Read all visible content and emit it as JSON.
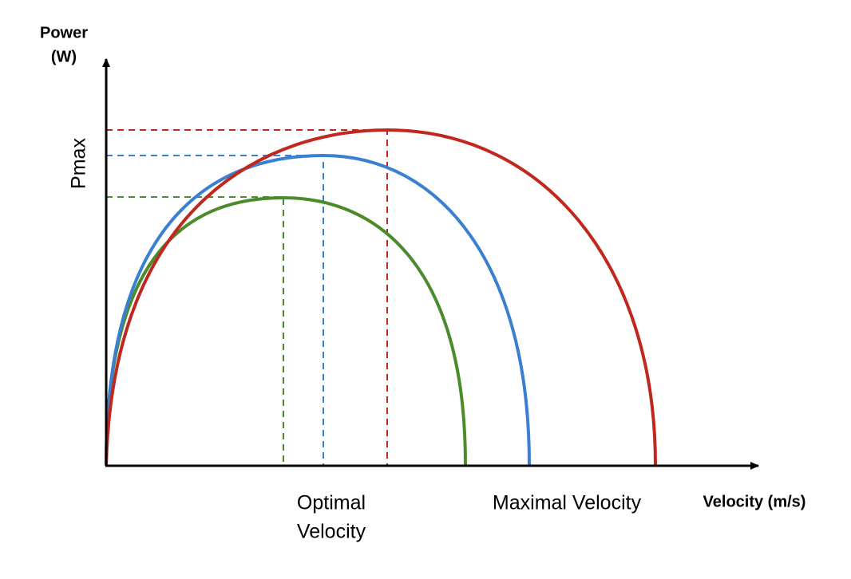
{
  "y_axis": {
    "label_lines": [
      "Power",
      "(W)"
    ],
    "marker": "Pmax"
  },
  "x_axis": {
    "label": "Velocity (m/s)",
    "optimal_lines": [
      "Optimal",
      "Velocity"
    ],
    "maximal": "Maximal Velocity"
  }
}
